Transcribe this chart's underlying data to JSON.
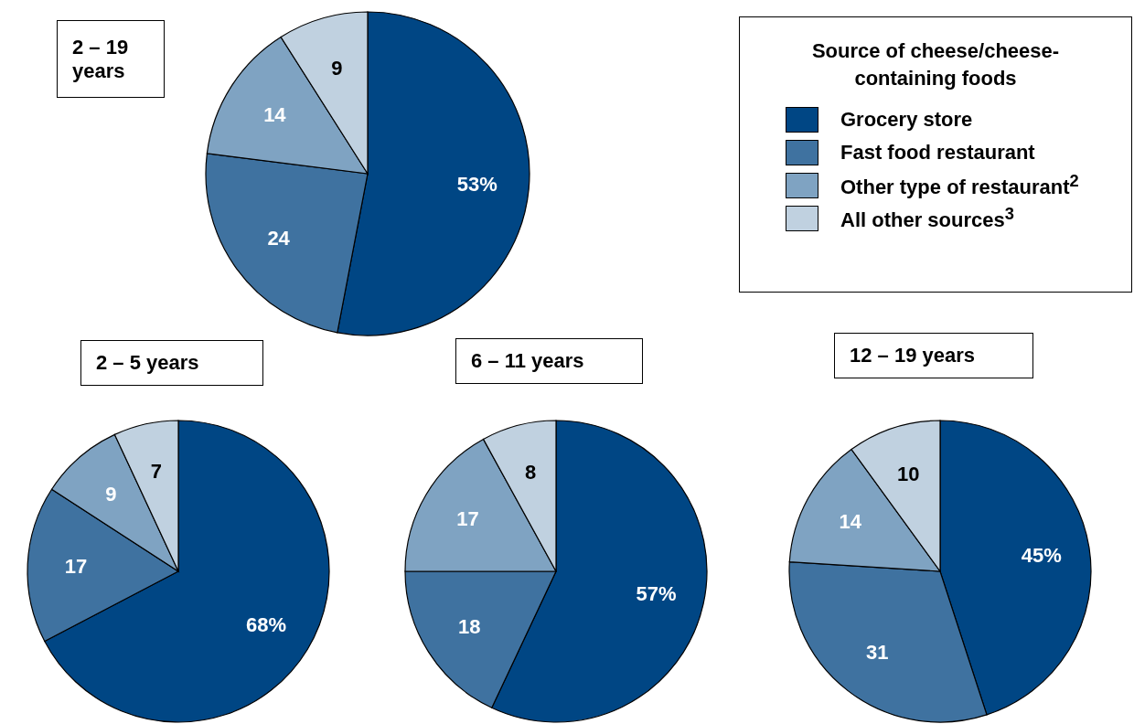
{
  "chart_data": [
    {
      "type": "pie",
      "title": "2 – 19 years",
      "legend_title": "Source of cheese/cheese-containing foods",
      "legend": "top right",
      "categories": [
        "Grocery store",
        "Fast food restaurant",
        "Other type of restaurant$^{2}$",
        "All other sources$^{3}$"
      ],
      "values": [
        53,
        24,
        14,
        9
      ],
      "colors": [
        "#004684",
        "#3f72a0",
        "#7fa3c2",
        "#c0d1e0"
      ],
      "value_labels": [
        "53%",
        "24",
        "14",
        "9"
      ]
    },
    {
      "type": "pie",
      "title": "2 – 5 years",
      "categories": [
        null,
        null,
        null,
        null
      ],
      "values": [
        68,
        17,
        9,
        7
      ],
      "colors": [
        "#004684",
        "#3f72a0",
        "#7fa3c2",
        "#c0d1e0"
      ],
      "value_labels": [
        "68%",
        "17",
        "9",
        "7"
      ]
    },
    {
      "type": "pie",
      "title": "6 – 11 years",
      "categories": [
        null,
        null,
        null,
        null
      ],
      "values": [
        57,
        18,
        17,
        8
      ],
      "colors": [
        "#004684",
        "#3f72a0",
        "#7fa3c2",
        "#c0d1e0"
      ],
      "value_labels": [
        "57%",
        "18",
        "17",
        "8"
      ]
    },
    {
      "type": "pie",
      "title": "12 – 19 years",
      "categories": [
        null,
        null,
        null,
        null
      ],
      "values": [
        45,
        31,
        14,
        10
      ],
      "colors": [
        "#004684",
        "#3f72a0",
        "#7fa3c2",
        "#c0d1e0"
      ],
      "value_labels": [
        "45%",
        "31",
        "14",
        "10"
      ]
    }
  ]
}
